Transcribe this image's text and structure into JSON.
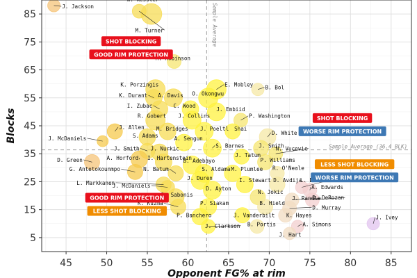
{
  "chart_data": {
    "type": "scatter",
    "xlabel": "Opponent FG% at rim",
    "ylabel": "Blocks",
    "xlim": [
      42,
      87.5
    ],
    "ylim": [
      0,
      90
    ],
    "xticks": [
      45,
      50,
      55,
      60,
      65,
      70,
      75,
      80,
      85
    ],
    "yticks": [
      5,
      15,
      25,
      35,
      45,
      55,
      65,
      75,
      85
    ],
    "grid": true,
    "reference_lines": {
      "x": 62.3,
      "y": 36.4,
      "x_label": "Sample Average",
      "y_label": "Sample_Average_(36.4_BLK)"
    },
    "quadrant_labels": [
      {
        "lines": [
          "SHOT BLOCKING",
          "GOOD RIM PROTECTION"
        ],
        "colors": [
          "#e8101c",
          "#e8101c"
        ],
        "x": 53,
        "y": 77,
        "anchor": "top"
      },
      {
        "lines": [
          "SHOT BLOCKING",
          "WORSE RIM PROTECTION"
        ],
        "colors": [
          "#e8101c",
          "#3d78b4"
        ],
        "x": 79,
        "y": 49.5,
        "anchor": "top"
      },
      {
        "lines": [
          "LESS SHOT BLOCKING",
          "WORSE RIM PROTECTION"
        ],
        "colors": [
          "#f08c00",
          "#3d78b4"
        ],
        "x": 80.5,
        "y": 33,
        "anchor": "top"
      },
      {
        "lines": [
          "GOOD RIM PROTECTION",
          "LESS SHOT BLOCKING"
        ],
        "colors": [
          "#e8101c",
          "#f08c00"
        ],
        "x": 52.5,
        "y": 21,
        "anchor": "top"
      }
    ],
    "points": [
      {
        "name": "J. Jackson",
        "x": 43.5,
        "y": 88,
        "r": 9,
        "color": "#f6c47a",
        "lx": 44.5,
        "ly": 87
      },
      {
        "name": "W. Kessler",
        "x": 55.5,
        "y": 85,
        "r": 15,
        "color": "#f7dc55",
        "lx": 52.5,
        "ly": 89.5
      },
      {
        "name": "M. Turner",
        "x": 54,
        "y": 86,
        "r": 10,
        "color": "#f7dc55",
        "lx": 53.5,
        "ly": 78.5
      },
      {
        "name": "M. Robinson",
        "x": 58.3,
        "y": 68,
        "r": 10,
        "color": "#f5e570",
        "lx": 56,
        "ly": 68.5
      },
      {
        "name": "E. Mobley",
        "x": 63.5,
        "y": 58,
        "r": 14,
        "color": "#fff240",
        "lx": 64.5,
        "ly": 59
      },
      {
        "name": "B. Bol",
        "x": 68.6,
        "y": 58,
        "r": 9,
        "color": "#f5e8a6",
        "lx": 69.5,
        "ly": 58
      },
      {
        "name": "K. Porzingis",
        "x": 56,
        "y": 58,
        "r": 14,
        "color": "#f7dc55",
        "lx": 51.7,
        "ly": 59
      },
      {
        "name": "A. Davis",
        "x": 58.2,
        "y": 55,
        "r": 13,
        "color": "#f7dc55",
        "lx": 56.3,
        "ly": 55.2
      },
      {
        "name": "K. Durant",
        "x": 55.8,
        "y": 55,
        "r": 12,
        "color": "#f7dc55",
        "lx": 51.5,
        "ly": 55.2
      },
      {
        "name": "O. Okongwu",
        "x": 62.5,
        "y": 55,
        "r": 14,
        "color": "#fff240",
        "lx": 60.5,
        "ly": 55.8
      },
      {
        "name": "I. Zubac",
        "x": 56.5,
        "y": 51,
        "r": 12,
        "color": "#f7dc55",
        "lx": 52.5,
        "ly": 51.5
      },
      {
        "name": "C. Wood",
        "x": 60.3,
        "y": 51,
        "r": 12,
        "color": "#fff240",
        "lx": 58.2,
        "ly": 51.5
      },
      {
        "name": "J. Embiid",
        "x": 63.5,
        "y": 50,
        "r": 13,
        "color": "#fff240",
        "lx": 63.5,
        "ly": 50.2
      },
      {
        "name": "R. Gobert",
        "x": 56,
        "y": 47,
        "r": 14,
        "color": "#f7dc55",
        "lx": 53.8,
        "ly": 47.8
      },
      {
        "name": "J. Collins",
        "x": 60.5,
        "y": 47,
        "r": 13,
        "color": "#fff240",
        "lx": 58.8,
        "ly": 47.8
      },
      {
        "name": "P. Washington",
        "x": 66.5,
        "y": 47,
        "r": 10,
        "color": "#f5e570",
        "lx": 67.5,
        "ly": 47.8
      },
      {
        "name": "J. Allen",
        "x": 51,
        "y": 43,
        "r": 11,
        "color": "#f6c94d",
        "lx": 51.5,
        "ly": 43.8
      },
      {
        "name": "M. Bridges",
        "x": 57.5,
        "y": 43,
        "r": 12,
        "color": "#f7dc55",
        "lx": 56.1,
        "ly": 43.2
      },
      {
        "name": "J. Poeltl",
        "x": 62,
        "y": 43,
        "r": 13,
        "color": "#fff240",
        "lx": 61.5,
        "ly": 43.2
      },
      {
        "name": "Shai",
        "x": 65.5,
        "y": 43,
        "r": 11,
        "color": "#fff240",
        "lx": 65.7,
        "ly": 43.2
      },
      {
        "name": "D. White",
        "x": 69.8,
        "y": 41,
        "r": 12,
        "color": "#f5e8a6",
        "lx": 70.3,
        "ly": 41.8
      },
      {
        "name": "J. McDaniels",
        "x": 49.5,
        "y": 39.5,
        "r": 8,
        "color": "#f6c94d",
        "lx": 42.8,
        "ly": 39.8
      },
      {
        "name": "S. Adams",
        "x": 55,
        "y": 41,
        "r": 12,
        "color": "#f7dc55",
        "lx": 53.2,
        "ly": 40.8
      },
      {
        "name": "A. Sengun",
        "x": 59.5,
        "y": 39,
        "r": 12,
        "color": "#fff240",
        "lx": 58.3,
        "ly": 39.8
      },
      {
        "name": "S. Barnes",
        "x": 63,
        "y": 37,
        "r": 13,
        "color": "#fff240",
        "lx": 63.4,
        "ly": 37.2
      },
      {
        "name": "J. Smith",
        "x": 69,
        "y": 37,
        "r": 11,
        "color": "#f5e570",
        "lx": 68.7,
        "ly": 37.2
      },
      {
        "name": "J. Smith",
        "x": 55,
        "y": 36,
        "r": 11,
        "color": "#f7dc55",
        "lx": 50.9,
        "ly": 36.2
      },
      {
        "name": "J. Nurkic",
        "x": 56.5,
        "y": 35.5,
        "r": 12,
        "color": "#f7dc55",
        "lx": 55.4,
        "ly": 36.2
      },
      {
        "name": "N. Vucevic",
        "x": 70.8,
        "y": 35,
        "r": 10,
        "color": "#f5e570",
        "lx": 70.8,
        "ly": 36.2
      },
      {
        "name": "J. Tatum",
        "x": 66.6,
        "y": 34,
        "r": 11,
        "color": "#fff240",
        "lx": 65.8,
        "ly": 33.8
      },
      {
        "name": "A. Horford",
        "x": 54,
        "y": 33,
        "r": 12,
        "color": "#f6c94d",
        "lx": 50,
        "ly": 32.8
      },
      {
        "name": "I. Hartenstein",
        "x": 57,
        "y": 32,
        "r": 12,
        "color": "#f7dc55",
        "lx": 55,
        "ly": 32.8
      },
      {
        "name": "P. Williams",
        "x": 69.5,
        "y": 32,
        "r": 11,
        "color": "#f5e570",
        "lx": 68.9,
        "ly": 32.1
      },
      {
        "name": "D. Green",
        "x": 48.2,
        "y": 32,
        "r": 11,
        "color": "#f6c47a",
        "lx": 43.9,
        "ly": 32.1
      },
      {
        "name": "B. Adebayo",
        "x": 60.5,
        "y": 31,
        "r": 13,
        "color": "#fff240",
        "lx": 59.4,
        "ly": 31.8
      },
      {
        "name": "G. Antetokounmpo",
        "x": 53.5,
        "y": 28.5,
        "r": 11,
        "color": "#f6c94d",
        "lx": 45.4,
        "ly": 28.8
      },
      {
        "name": "N. Batum",
        "x": 58.5,
        "y": 28,
        "r": 11,
        "color": "#f7dc55",
        "lx": 54.5,
        "ly": 28.8
      },
      {
        "name": "S. Aldama",
        "x": 62,
        "y": 28,
        "r": 13,
        "color": "#fff240",
        "lx": 61.7,
        "ly": 28.8
      },
      {
        "name": "M. Plumlee",
        "x": 65.5,
        "y": 28,
        "r": 12,
        "color": "#fff240",
        "lx": 65.3,
        "ly": 28.8
      },
      {
        "name": "R. O'Neale",
        "x": 71,
        "y": 28,
        "r": 10,
        "color": "#f5e8a6",
        "lx": 70.4,
        "ly": 29.2
      },
      {
        "name": "J. Duren",
        "x": 61.5,
        "y": 25.5,
        "r": 13,
        "color": "#fff240",
        "lx": 59.9,
        "ly": 25.6
      },
      {
        "name": "I. Stewart",
        "x": 67,
        "y": 24,
        "r": 12,
        "color": "#fff240",
        "lx": 66.3,
        "ly": 24.8
      },
      {
        "name": "D. Avdija",
        "x": 71,
        "y": 24,
        "r": 11,
        "color": "#f5e8a6",
        "lx": 70.5,
        "ly": 24.8
      },
      {
        "name": "L. Doncic",
        "x": 74,
        "y": 23,
        "r": 9,
        "color": "#f3cfcf",
        "lx": 73.8,
        "ly": 24.8
      },
      {
        "name": "L. Markkanen",
        "x": 57,
        "y": 24,
        "r": 11,
        "color": "#f7dc55",
        "lx": 46.3,
        "ly": 23.9
      },
      {
        "name": "J. McDaniels",
        "x": 57.5,
        "y": 23,
        "r": 10,
        "color": "#f7dc55",
        "lx": 50.7,
        "ly": 22.9
      },
      {
        "name": "A. Edwards",
        "x": 75,
        "y": 22,
        "r": 10,
        "color": "#f3cfcf",
        "lx": 75.2,
        "ly": 22.4
      },
      {
        "name": "D. Ayton",
        "x": 63,
        "y": 22,
        "r": 13,
        "color": "#fff240",
        "lx": 62.2,
        "ly": 21.9
      },
      {
        "name": "D. Sabonis",
        "x": 58.5,
        "y": 19.5,
        "r": 12,
        "color": "#f7dc55",
        "lx": 56.7,
        "ly": 19.7
      },
      {
        "name": "N. Jokic",
        "x": 68.6,
        "y": 19.5,
        "r": 11,
        "color": "#f5e570",
        "lx": 68.6,
        "ly": 20.6
      },
      {
        "name": "J. Randle",
        "x": 72.8,
        "y": 18.5,
        "r": 10,
        "color": "#f2dcc2",
        "lx": 72.8,
        "ly": 18.4
      },
      {
        "name": "D. DeRozan",
        "x": 75.3,
        "y": 18.5,
        "r": 10,
        "color": "#f3cfcf",
        "lx": 75.3,
        "ly": 18.6
      },
      {
        "name": "K. Kuzma",
        "x": 58.8,
        "y": 16,
        "r": 11,
        "color": "#f7dc55",
        "lx": 53.8,
        "ly": 16.6
      },
      {
        "name": "P. Siakam",
        "x": 62.5,
        "y": 16,
        "r": 12,
        "color": "#fff240",
        "lx": 61.5,
        "ly": 16.6
      },
      {
        "name": "B. Hield",
        "x": 69.5,
        "y": 16,
        "r": 11,
        "color": "#f5e8a6",
        "lx": 68.8,
        "ly": 16.6
      },
      {
        "name": "D. Murray",
        "x": 72.5,
        "y": 15.5,
        "r": 10,
        "color": "#f2dcc2",
        "lx": 75.3,
        "ly": 15.1
      },
      {
        "name": "P. Banchero",
        "x": 61.5,
        "y": 12.5,
        "r": 12,
        "color": "#fff240",
        "lx": 58.6,
        "ly": 12.3
      },
      {
        "name": "J. Vanderbilt",
        "x": 66.7,
        "y": 13,
        "r": 11,
        "color": "#fff240",
        "lx": 65.6,
        "ly": 12.3
      },
      {
        "name": "K. Hayes",
        "x": 72,
        "y": 13,
        "r": 10,
        "color": "#f2dcc2",
        "lx": 72.1,
        "ly": 12.3
      },
      {
        "name": "J. Ivey",
        "x": 82.8,
        "y": 10,
        "r": 9,
        "color": "#e2c4ef",
        "lx": 83.1,
        "ly": 11.5
      },
      {
        "name": "B. Portis",
        "x": 68.5,
        "y": 9,
        "r": 10,
        "color": "#f5e8a6",
        "lx": 67.3,
        "ly": 9.1
      },
      {
        "name": "A. Simons",
        "x": 73.5,
        "y": 9,
        "r": 9,
        "color": "#f3cfcf",
        "lx": 74.1,
        "ly": 9.1
      },
      {
        "name": "J. Clarkson",
        "x": 62.5,
        "y": 9,
        "r": 10,
        "color": "#fff240",
        "lx": 62.1,
        "ly": 8.5
      },
      {
        "name": "J. Hart",
        "x": 72.5,
        "y": 6.5,
        "r": 9,
        "color": "#f2dcc2",
        "lx": 71.2,
        "ly": 5.3
      }
    ]
  }
}
